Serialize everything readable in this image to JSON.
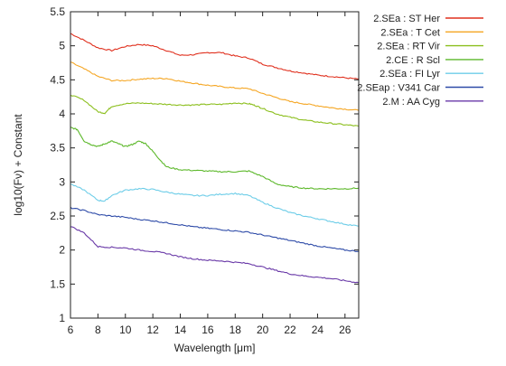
{
  "chart_data": {
    "type": "line",
    "title": "",
    "xlabel": "Wavelength [μm]",
    "ylabel": "log10(Fν) + Constant",
    "xlim": [
      6,
      27
    ],
    "ylim": [
      1,
      5.5
    ],
    "xticks": [
      6,
      8,
      10,
      12,
      14,
      16,
      18,
      20,
      22,
      24,
      26
    ],
    "yticks": [
      1,
      1.5,
      2,
      2.5,
      3,
      3.5,
      4,
      4.5,
      5,
      5.5
    ],
    "ytick_labels": [
      "1",
      "1.5",
      "2",
      "2.5",
      "3",
      "3.5",
      "4",
      "4.5",
      "5",
      "5.5"
    ],
    "grid": false,
    "legend_position": "outside-right",
    "series": [
      {
        "name": "2.SEa : ST Her",
        "color": "#e0301e",
        "x": [
          6,
          7,
          8,
          9,
          10,
          11,
          12,
          13,
          14,
          15,
          16,
          17,
          18,
          19,
          20,
          21,
          22,
          23,
          24,
          25,
          26,
          27
        ],
        "y": [
          5.18,
          5.08,
          4.97,
          4.93,
          4.99,
          5.02,
          5.0,
          4.93,
          4.86,
          4.87,
          4.9,
          4.9,
          4.85,
          4.82,
          4.73,
          4.68,
          4.63,
          4.6,
          4.57,
          4.55,
          4.53,
          4.51
        ]
      },
      {
        "name": "2.SEa : T Cet",
        "color": "#f5a623",
        "x": [
          6,
          7,
          8,
          9,
          10,
          11,
          12,
          13,
          14,
          15,
          16,
          17,
          18,
          19,
          20,
          21,
          22,
          23,
          24,
          25,
          26,
          27
        ],
        "y": [
          4.76,
          4.66,
          4.55,
          4.49,
          4.49,
          4.51,
          4.52,
          4.52,
          4.48,
          4.45,
          4.42,
          4.4,
          4.38,
          4.37,
          4.3,
          4.24,
          4.18,
          4.15,
          4.12,
          4.09,
          4.07,
          4.05
        ]
      },
      {
        "name": "2.SEa : RT Vir",
        "color": "#8cbf1e",
        "x": [
          6,
          7,
          8,
          8.5,
          9,
          10,
          11,
          12,
          13,
          14,
          15,
          16,
          17,
          18,
          19,
          19.5,
          20,
          21,
          22,
          23,
          24,
          25,
          26,
          27
        ],
        "y": [
          4.28,
          4.2,
          4.03,
          4.01,
          4.11,
          4.15,
          4.16,
          4.15,
          4.14,
          4.13,
          4.13,
          4.14,
          4.14,
          4.16,
          4.15,
          4.12,
          4.08,
          4.0,
          3.95,
          3.91,
          3.88,
          3.86,
          3.84,
          3.82
        ]
      },
      {
        "name": "2.CE : R Scl",
        "color": "#5cb82a",
        "x": [
          6,
          6.5,
          7,
          7.5,
          8,
          8.5,
          9,
          9.5,
          10,
          10.5,
          11,
          11.5,
          12,
          12.5,
          13,
          14,
          15,
          16,
          17,
          18,
          19,
          20,
          21,
          22,
          23,
          24,
          25,
          26,
          27
        ],
        "y": [
          3.8,
          3.77,
          3.6,
          3.55,
          3.52,
          3.56,
          3.6,
          3.56,
          3.52,
          3.55,
          3.6,
          3.56,
          3.45,
          3.33,
          3.22,
          3.18,
          3.17,
          3.16,
          3.15,
          3.15,
          3.16,
          3.08,
          2.97,
          2.93,
          2.91,
          2.9,
          2.9,
          2.9,
          2.91
        ]
      },
      {
        "name": "2.SEa : FI Lyr",
        "color": "#6dcde8",
        "x": [
          6,
          7,
          8,
          8.5,
          9,
          10,
          11,
          12,
          13,
          14,
          15,
          16,
          17,
          18,
          19,
          20,
          21,
          22,
          23,
          24,
          25,
          26,
          27
        ],
        "y": [
          2.97,
          2.88,
          2.73,
          2.72,
          2.8,
          2.88,
          2.9,
          2.89,
          2.85,
          2.82,
          2.8,
          2.8,
          2.82,
          2.83,
          2.8,
          2.7,
          2.62,
          2.55,
          2.5,
          2.46,
          2.42,
          2.38,
          2.35
        ]
      },
      {
        "name": "2.SEap : V341 Car",
        "color": "#2e4ba8",
        "x": [
          6,
          7,
          8,
          9,
          10,
          11,
          12,
          13,
          14,
          15,
          16,
          17,
          18,
          19,
          20,
          21,
          22,
          23,
          24,
          25,
          26,
          27
        ],
        "y": [
          2.62,
          2.58,
          2.52,
          2.5,
          2.48,
          2.45,
          2.43,
          2.4,
          2.37,
          2.34,
          2.32,
          2.3,
          2.28,
          2.26,
          2.22,
          2.18,
          2.14,
          2.1,
          2.06,
          2.03,
          2.0,
          1.98
        ]
      },
      {
        "name": "2.M : AA Cyg",
        "color": "#6a3aa8",
        "x": [
          6,
          7,
          8,
          9,
          10,
          11,
          12,
          13,
          14,
          15,
          16,
          17,
          18,
          19,
          20,
          21,
          22,
          23,
          24,
          25,
          26,
          27
        ],
        "y": [
          2.35,
          2.25,
          2.05,
          2.04,
          2.03,
          2.0,
          1.98,
          1.95,
          1.9,
          1.87,
          1.85,
          1.84,
          1.82,
          1.8,
          1.75,
          1.7,
          1.65,
          1.62,
          1.6,
          1.58,
          1.55,
          1.52
        ]
      }
    ]
  }
}
